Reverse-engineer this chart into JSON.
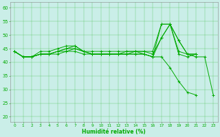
{
  "xlabel": "Humidité relative (%)",
  "xlim": [
    -0.5,
    23.5
  ],
  "ylim": [
    18,
    62
  ],
  "yticks": [
    20,
    25,
    30,
    35,
    40,
    45,
    50,
    55,
    60
  ],
  "xticks": [
    0,
    1,
    2,
    3,
    4,
    5,
    6,
    7,
    8,
    9,
    10,
    11,
    12,
    13,
    14,
    15,
    16,
    17,
    18,
    19,
    20,
    21,
    22,
    23
  ],
  "bg_color": "#caeee8",
  "line_color": "#00aa00",
  "grid_color": "#44bb44",
  "series": [
    [
      44,
      42,
      42,
      43,
      43,
      44,
      45,
      45,
      44,
      43,
      43,
      43,
      43,
      44,
      44,
      43,
      42,
      49,
      54,
      48,
      43,
      42,
      42,
      28
    ],
    [
      44,
      42,
      42,
      43,
      43,
      44,
      45,
      46,
      44,
      43,
      43,
      43,
      43,
      43,
      43,
      43,
      42,
      54,
      54,
      43,
      42,
      43,
      null,
      null
    ],
    [
      44,
      42,
      42,
      44,
      44,
      45,
      46,
      46,
      44,
      44,
      44,
      44,
      44,
      44,
      44,
      44,
      44,
      54,
      54,
      48,
      43,
      43,
      null,
      null
    ],
    [
      44,
      42,
      42,
      43,
      43,
      44,
      44,
      45,
      44,
      43,
      43,
      43,
      43,
      43,
      44,
      44,
      43,
      49,
      54,
      44,
      43,
      43,
      null,
      null
    ],
    [
      44,
      42,
      42,
      43,
      43,
      43,
      44,
      44,
      43,
      43,
      43,
      43,
      43,
      43,
      43,
      43,
      42,
      42,
      38,
      33,
      29,
      28,
      null,
      null
    ]
  ]
}
